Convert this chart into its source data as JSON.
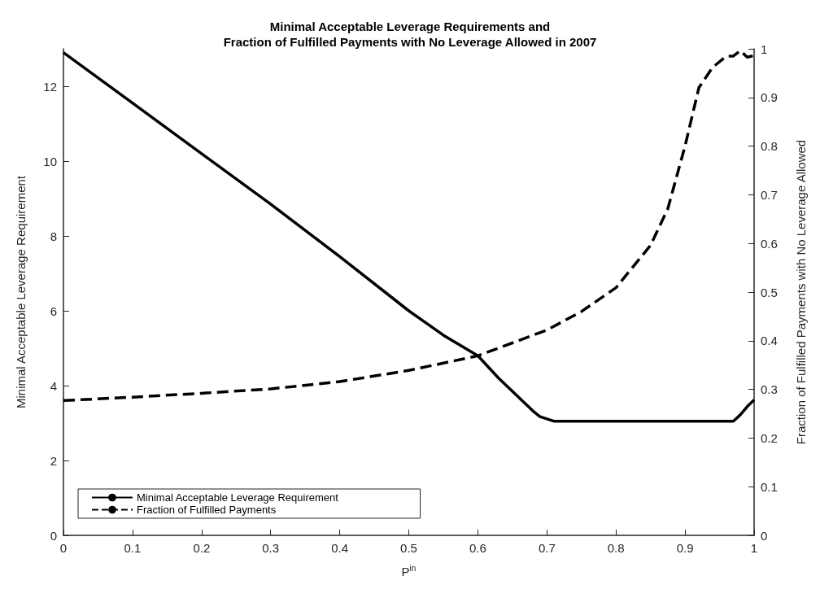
{
  "chart_data": {
    "type": "line",
    "title": "Minimal Acceptable Leverage Requirements and\nFraction of Fulfilled Payments with No Leverage Allowed in 2007",
    "xlabel": "P$^{in}$",
    "ylabel": "Minimal Acceptable Leverage Requirement",
    "y2label": "Fraction of Fulfilled Payments with No Leverage Allowed",
    "xlim": [
      0,
      1
    ],
    "xticks": [
      0,
      0.1,
      0.2,
      0.3,
      0.4,
      0.5,
      0.6,
      0.7,
      0.8,
      0.9,
      1
    ],
    "ylim": [
      0,
      13
    ],
    "yticks": [
      0,
      2,
      4,
      6,
      8,
      10,
      12
    ],
    "y2lim": [
      0,
      1
    ],
    "y2ticks": [
      0,
      0.1,
      0.2,
      0.3,
      0.4,
      0.5,
      0.6,
      0.7,
      0.8,
      0.9,
      1
    ],
    "grid": false,
    "legend": "bottom left",
    "marker": "none",
    "series": [
      {
        "name": "Minimal Acceptable Leverage Requirement",
        "color": "#000000",
        "line_style": "solid",
        "x": [
          0,
          0.1,
          0.2,
          0.3,
          0.4,
          0.5,
          0.55,
          0.6,
          0.63,
          0.68,
          0.69,
          0.71,
          0.97,
          0.98,
          0.99,
          1
        ],
        "values": [
          12.9,
          11.55,
          10.2,
          8.85,
          7.45,
          6.0,
          5.35,
          4.8,
          4.2,
          3.32,
          3.17,
          3.05,
          3.05,
          3.22,
          3.44,
          3.62
        ]
      },
      {
        "name": "Fraction of Fulfilled Payments",
        "color": "#000000",
        "line_style": "dashed",
        "axis": "y2",
        "x": [
          0,
          0.1,
          0.2,
          0.3,
          0.4,
          0.5,
          0.6,
          0.7,
          0.75,
          0.8,
          0.85,
          0.875,
          0.9,
          0.92,
          0.94,
          0.96,
          0.97,
          0.98,
          0.99,
          1
        ],
        "values": [
          0.277,
          0.284,
          0.292,
          0.301,
          0.316,
          0.339,
          0.369,
          0.422,
          0.46,
          0.509,
          0.596,
          0.671,
          0.8,
          0.92,
          0.962,
          0.985,
          0.985,
          0.996,
          0.983,
          0.986
        ]
      }
    ]
  }
}
